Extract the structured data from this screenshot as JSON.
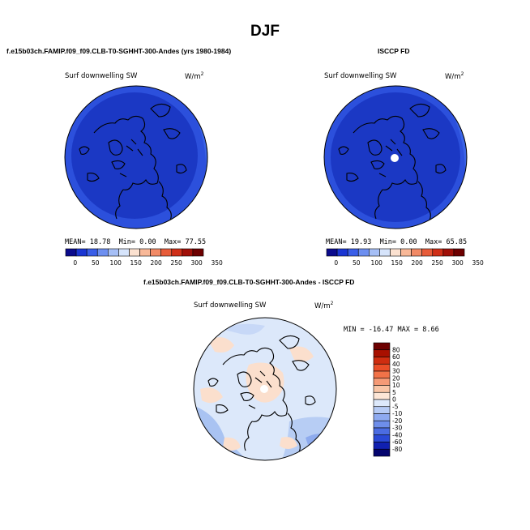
{
  "title": "DJF",
  "panels": [
    {
      "case_title": "f.e15b03ch.FAMIP.f09_f09.CLB-T0-SGHHT-300-Andes (yrs 1980-1984)",
      "variable": "Surf downwelling SW",
      "units": "W/m",
      "units_exp": "2",
      "stats": {
        "mean_label": "MEAN=",
        "mean": "18.78",
        "min_label": "Min=",
        "min": "0.00",
        "max_label": "Max=",
        "max": "77.55"
      }
    },
    {
      "case_title": "ISCCP FD",
      "variable": "Surf downwelling SW",
      "units": "W/m",
      "units_exp": "2",
      "stats": {
        "mean_label": "MEAN=",
        "mean": "19.93",
        "min_label": "Min=",
        "min": "0.00",
        "max_label": "Max=",
        "max": "65.85"
      }
    }
  ],
  "top_colorbar": {
    "labels": [
      "0",
      "50",
      "100",
      "150",
      "200",
      "250",
      "300",
      "350"
    ],
    "colors": [
      "#0a0a8c",
      "#1a35d2",
      "#3a5ee8",
      "#6d8ff0",
      "#a6bff6",
      "#d6e4fb",
      "#fbe1d0",
      "#f8b898",
      "#f18a66",
      "#e75c3a",
      "#cf2f18",
      "#a01008",
      "#6d0000"
    ]
  },
  "difference": {
    "case_title": "f.e15b03ch.FAMIP.f09_f09.CLB-T0-SGHHT-300-Andes - ISCCP FD",
    "variable": "Surf downwelling SW",
    "units": "W/m",
    "units_exp": "2",
    "minmax": "MIN = -16.47 MAX =   8.66",
    "colorbar": {
      "labels": [
        "80",
        "60",
        "40",
        "30",
        "20",
        "10",
        "5",
        "0",
        "-5",
        "-10",
        "-20",
        "-30",
        "-40",
        "-60",
        "-80"
      ],
      "colors": [
        "#6d0000",
        "#a81000",
        "#cf2d10",
        "#ea4e28",
        "#f27248",
        "#f59a76",
        "#f9c5a6",
        "#fde6d6",
        "#dde9fb",
        "#b6cbf5",
        "#8eaaf0",
        "#6e8eea",
        "#4b6ce2",
        "#2a49d6",
        "#1020b0",
        "#04046e"
      ]
    },
    "chart_data": {
      "type": "heatmap",
      "title": "Surf downwelling SW",
      "min": -16.47,
      "max": 8.66
    }
  },
  "colors": {
    "map_dark_blue": "#1f3fc9",
    "map_mid_blue": "#2f54de",
    "diff_background": "#dce8fa",
    "diff_warm": "#fbe0cf",
    "diff_cool": "#a8c2f2"
  }
}
